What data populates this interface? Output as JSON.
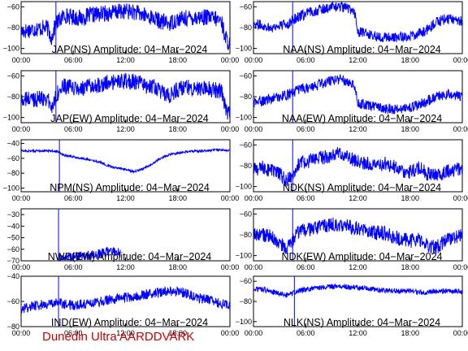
{
  "footer": "Dunedin Ultra AARDDVARK",
  "colors": {
    "trace": "#0000ff",
    "footer": "#cc0000",
    "frame": "#000000"
  },
  "chart_data": [
    {
      "type": "line",
      "title": "JAP(NS) Amplitude: 04−Mar−2024",
      "column": 0,
      "row": 0,
      "ylim": [
        -105,
        -55
      ],
      "yticks": [
        -100,
        -80,
        -60
      ],
      "ytick_labels": [
        "−100",
        "−80",
        "−60"
      ],
      "xlim": [
        0,
        24
      ],
      "xticks": [
        0,
        6,
        12,
        18,
        24
      ],
      "xtick_labels": [
        "00:00",
        "06:00",
        "12:00",
        "18:00",
        "00:00"
      ],
      "spike_x": 4.0,
      "x": [
        0,
        1,
        2,
        3,
        3.5,
        4,
        5,
        6,
        7,
        8,
        9,
        10,
        11,
        12,
        13,
        14,
        15,
        16,
        17,
        18,
        19,
        20,
        21,
        22,
        23,
        23.5,
        24
      ],
      "y": [
        -84,
        -82,
        -81,
        -80,
        -90,
        -76,
        -68,
        -70,
        -71,
        -68,
        -67,
        -66,
        -65,
        -64,
        -65,
        -68,
        -70,
        -74,
        -76,
        -72,
        -71,
        -70,
        -70,
        -71,
        -73,
        -90,
        -96
      ],
      "noise": 8
    },
    {
      "type": "line",
      "title": "NAA(NS) Amplitude: 04−Mar−2024",
      "column": 1,
      "row": 0,
      "ylim": [
        -105,
        -55
      ],
      "yticks": [
        -100,
        -80,
        -60
      ],
      "ytick_labels": [
        "−100",
        "−80",
        "−60"
      ],
      "xlim": [
        0,
        24
      ],
      "xticks": [
        0,
        6,
        12,
        18,
        24
      ],
      "xtick_labels": [
        "00:00",
        "06:00",
        "12:00",
        "18:00",
        "00:00"
      ],
      "spike_x": 4.5,
      "x": [
        0,
        1,
        2,
        3,
        4,
        5,
        6,
        7,
        8,
        9,
        10,
        11,
        11.6,
        12,
        14,
        16,
        18,
        19,
        20,
        21,
        22,
        23,
        24
      ],
      "y": [
        -76,
        -78,
        -80,
        -78,
        -76,
        -70,
        -67,
        -64,
        -62,
        -60,
        -60,
        -62,
        -64,
        -84,
        -88,
        -90,
        -88,
        -86,
        -82,
        -75,
        -72,
        -72,
        -74
      ],
      "noise": 5
    },
    {
      "type": "line",
      "title": "JAP(EW) Amplitude: 04−Mar−2024",
      "column": 0,
      "row": 1,
      "ylim": [
        -105,
        -55
      ],
      "yticks": [
        -100,
        -80,
        -60
      ],
      "ytick_labels": [
        "−100",
        "−80",
        "−60"
      ],
      "xlim": [
        0,
        24
      ],
      "xticks": [
        0,
        6,
        12,
        18,
        24
      ],
      "xtick_labels": [
        "00:00",
        "06:00",
        "12:00",
        "18:00",
        "00:00"
      ],
      "spike_x": 4.0,
      "x": [
        0,
        1,
        2,
        3,
        3.5,
        4,
        5,
        6,
        7,
        8,
        9,
        10,
        11,
        12,
        13,
        14,
        15,
        16,
        17,
        18,
        19,
        20,
        21,
        22,
        23,
        23.5,
        24
      ],
      "y": [
        -84,
        -82,
        -82,
        -81,
        -92,
        -78,
        -70,
        -72,
        -73,
        -70,
        -68,
        -67,
        -66,
        -65,
        -66,
        -68,
        -70,
        -75,
        -80,
        -73,
        -71,
        -71,
        -72,
        -73,
        -74,
        -92,
        -98
      ],
      "noise": 8
    },
    {
      "type": "line",
      "title": "NAA(EW) Amplitude: 04−Mar−2024",
      "column": 1,
      "row": 1,
      "ylim": [
        -105,
        -55
      ],
      "yticks": [
        -100,
        -80,
        -60
      ],
      "ytick_labels": [
        "−100",
        "−80",
        "−60"
      ],
      "xlim": [
        0,
        24
      ],
      "xticks": [
        0,
        6,
        12,
        18,
        24
      ],
      "xtick_labels": [
        "00:00",
        "06:00",
        "12:00",
        "18:00",
        "00:00"
      ],
      "spike_x": 4.5,
      "x": [
        0,
        1,
        2,
        3,
        4,
        5,
        6,
        7,
        8,
        9,
        10,
        11,
        11.6,
        12,
        14,
        16,
        18,
        19,
        20,
        21,
        22,
        23,
        24
      ],
      "y": [
        -86,
        -84,
        -82,
        -80,
        -78,
        -74,
        -72,
        -70,
        -67,
        -64,
        -63,
        -66,
        -68,
        -86,
        -90,
        -92,
        -90,
        -88,
        -84,
        -80,
        -78,
        -78,
        -80
      ],
      "noise": 5
    },
    {
      "type": "line",
      "title": "NPM(NS) Amplitude: 04−Mar−2024",
      "column": 0,
      "row": 2,
      "ylim": [
        -105,
        -35
      ],
      "yticks": [
        -100,
        -80,
        -60,
        -40
      ],
      "ytick_labels": [
        "−100",
        "−80",
        "−60",
        "−40"
      ],
      "xlim": [
        0,
        24
      ],
      "xticks": [
        0,
        6,
        12,
        18,
        24
      ],
      "xtick_labels": [
        "00:00",
        "06:00",
        "12:00",
        "18:00",
        "00:00"
      ],
      "spike_x": 4.4,
      "x": [
        0,
        1,
        2,
        3,
        4,
        4.4,
        5,
        6,
        7,
        8,
        9,
        10,
        11,
        12,
        13,
        14,
        15,
        16,
        17,
        18,
        19,
        20,
        21,
        22,
        23,
        24
      ],
      "y": [
        -50,
        -50,
        -50,
        -50,
        -50,
        -52,
        -56,
        -58,
        -60,
        -62,
        -65,
        -70,
        -73,
        -75,
        -78,
        -74,
        -68,
        -60,
        -55,
        -53,
        -51,
        -50,
        -50,
        -49,
        -49,
        -49
      ],
      "noise": 1.5
    },
    {
      "type": "line",
      "title": "NDK(NS) Amplitude: 04−Mar−2024",
      "column": 1,
      "row": 2,
      "ylim": [
        -105,
        -55
      ],
      "yticks": [
        -100,
        -80,
        -60
      ],
      "ytick_labels": [
        "−100",
        "−80",
        "−60"
      ],
      "xlim": [
        0,
        24
      ],
      "xticks": [
        0,
        6,
        12,
        18,
        24
      ],
      "xtick_labels": [
        "00:00",
        "06:00",
        "12:00",
        "18:00",
        "00:00"
      ],
      "spike_x": 4.5,
      "x": [
        0,
        1,
        2,
        3,
        3.8,
        4.5,
        5,
        6,
        7,
        8,
        9,
        10,
        11,
        12,
        13,
        14,
        15,
        16,
        17,
        18,
        19,
        20,
        21,
        22,
        23,
        24
      ],
      "y": [
        -84,
        -82,
        -84,
        -88,
        -95,
        -88,
        -80,
        -76,
        -74,
        -72,
        -70,
        -68,
        -72,
        -76,
        -78,
        -80,
        -78,
        -80,
        -84,
        -86,
        -82,
        -88,
        -90,
        -86,
        -84,
        -82
      ],
      "noise": 7
    },
    {
      "type": "line",
      "title": "NWC(EW) Amplitude: 04−Mar−2024",
      "column": 0,
      "row": 3,
      "ylim": [
        -70,
        -25
      ],
      "yticks": [
        -70,
        -60,
        -50,
        -40,
        -30
      ],
      "ytick_labels": [
        "−70",
        "−60",
        "−50",
        "−40",
        "−30"
      ],
      "xlim": [
        0,
        24
      ],
      "xticks": [
        0,
        6,
        12,
        18,
        24
      ],
      "xtick_labels": [
        "00:00",
        "06:00",
        "12:00",
        "18:00",
        "00:00"
      ],
      "spike_x": 4.3,
      "x": [
        4.2,
        5,
        6,
        7,
        8,
        9,
        10,
        11,
        11.4
      ],
      "y": [
        -69,
        -67,
        -66,
        -66,
        -65,
        -64,
        -62,
        -62,
        -64
      ],
      "noise": 4
    },
    {
      "type": "line",
      "title": "NDK(EW) Amplitude: 04−Mar−2024",
      "column": 1,
      "row": 3,
      "ylim": [
        -105,
        -55
      ],
      "yticks": [
        -100,
        -80,
        -60
      ],
      "ytick_labels": [
        "−100",
        "−80",
        "−60"
      ],
      "xlim": [
        0,
        24
      ],
      "xticks": [
        0,
        6,
        12,
        18,
        24
      ],
      "xtick_labels": [
        "00:00",
        "06:00",
        "12:00",
        "18:00",
        "00:00"
      ],
      "spike_x": 4.5,
      "x": [
        0,
        1,
        2,
        3,
        3.8,
        4.5,
        5,
        6,
        7,
        8,
        9,
        10,
        11,
        12,
        13,
        14,
        15,
        16,
        17,
        18,
        19,
        20,
        21,
        22,
        23,
        24
      ],
      "y": [
        -80,
        -80,
        -82,
        -88,
        -94,
        -86,
        -78,
        -76,
        -74,
        -72,
        -70,
        -70,
        -72,
        -74,
        -76,
        -78,
        -78,
        -82,
        -84,
        -86,
        -84,
        -90,
        -92,
        -86,
        -82,
        -80
      ],
      "noise": 7
    },
    {
      "type": "line",
      "title": "IND(EW) Amplitude: 04−Mar−2024",
      "column": 0,
      "row": 4,
      "ylim": [
        -80,
        -40
      ],
      "yticks": [
        -80,
        -60,
        -40
      ],
      "ytick_labels": [
        "−80",
        "−60",
        "−40"
      ],
      "xlim": [
        0,
        24
      ],
      "xticks": [
        0,
        6,
        12,
        18,
        24
      ],
      "xtick_labels": [
        "00:00",
        "06:00",
        "12:00",
        "18:00",
        "00:00"
      ],
      "spike_x": 4.3,
      "x": [
        0,
        1,
        2,
        3,
        4,
        5,
        6,
        7,
        8,
        9,
        10,
        11,
        12,
        13,
        14,
        15,
        16,
        17,
        18,
        19,
        20,
        21,
        22,
        23,
        24
      ],
      "y": [
        -66,
        -64,
        -63,
        -62,
        -61,
        -62,
        -63,
        -62,
        -61,
        -60,
        -59,
        -58,
        -57,
        -56,
        -55,
        -54,
        -53,
        -52,
        -52,
        -54,
        -56,
        -58,
        -60,
        -62,
        -63
      ],
      "noise": 4
    },
    {
      "type": "line",
      "title": "NLK(NS) Amplitude: 04−Mar−2024",
      "column": 1,
      "row": 4,
      "ylim": [
        -105,
        -55
      ],
      "yticks": [
        -100,
        -80,
        -60
      ],
      "ytick_labels": [
        "−100",
        "−80",
        "−60"
      ],
      "xlim": [
        0,
        24
      ],
      "xticks": [
        0,
        6,
        12,
        18,
        24
      ],
      "xtick_labels": [
        "00:00",
        "06:00",
        "12:00",
        "18:00",
        "00:00"
      ],
      "spike_x": 4.7,
      "x": [
        0,
        1,
        2,
        3,
        4,
        5,
        6,
        7,
        8,
        9,
        10,
        11,
        12,
        13,
        14,
        15,
        16,
        17,
        18,
        19,
        20,
        21,
        22,
        23,
        24
      ],
      "y": [
        -68,
        -68,
        -70,
        -72,
        -74,
        -70,
        -68,
        -67,
        -66,
        -65,
        -65,
        -66,
        -66,
        -67,
        -68,
        -69,
        -69,
        -70,
        -70,
        -71,
        -71,
        -70,
        -70,
        -70,
        -70
      ],
      "noise": 2.5
    }
  ]
}
